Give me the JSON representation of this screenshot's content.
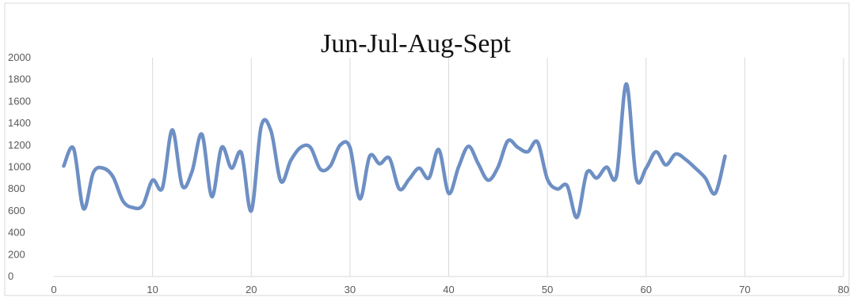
{
  "chart_data": {
    "type": "line",
    "title": "Jun-Jul-Aug-Sept",
    "xlabel": "",
    "ylabel": "",
    "xlim": [
      0,
      80
    ],
    "ylim": [
      0,
      2000
    ],
    "x_ticks": [
      0,
      10,
      20,
      30,
      40,
      50,
      60,
      70,
      80
    ],
    "y_ticks": [
      0,
      200,
      400,
      600,
      800,
      1000,
      1200,
      1400,
      1600,
      1800,
      2000
    ],
    "grid": "vertical",
    "legend": "none",
    "line_color": "#6d8fc4",
    "series": [
      {
        "x": [
          1,
          2,
          3,
          4,
          5,
          6,
          7,
          8,
          9,
          10,
          11,
          12,
          13,
          14,
          15,
          16,
          17,
          18,
          19,
          20,
          21,
          22,
          23,
          24,
          25,
          26,
          27,
          28,
          29,
          30,
          31,
          32,
          33,
          34,
          35,
          36,
          37,
          38,
          39,
          40,
          41,
          42,
          43,
          44,
          45,
          46,
          47,
          48,
          49,
          50,
          51,
          52,
          53,
          54,
          55,
          56,
          57,
          58,
          59,
          60,
          61,
          62,
          63,
          64,
          65,
          66,
          67,
          68
        ],
        "values": [
          1010,
          1170,
          620,
          950,
          990,
          910,
          690,
          630,
          650,
          880,
          810,
          1340,
          830,
          960,
          1300,
          730,
          1180,
          990,
          1130,
          600,
          1370,
          1330,
          870,
          1060,
          1180,
          1180,
          980,
          1010,
          1200,
          1180,
          710,
          1100,
          1030,
          1080,
          800,
          890,
          990,
          900,
          1160,
          760,
          1000,
          1190,
          1030,
          880,
          1000,
          1240,
          1180,
          1140,
          1230,
          890,
          800,
          830,
          540,
          950,
          900,
          1000,
          920,
          1760,
          900,
          990,
          1140,
          1020,
          1120,
          1070,
          990,
          900,
          760,
          1100
        ]
      }
    ]
  }
}
